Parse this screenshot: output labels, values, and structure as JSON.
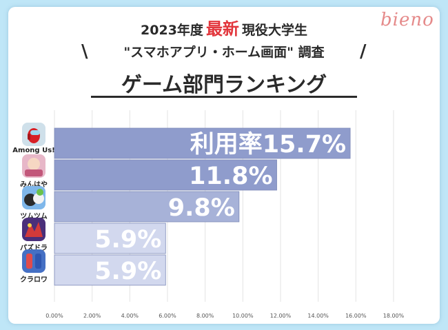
{
  "header": {
    "line1_pre": "2023年度",
    "line1_accent": "最新",
    "line1_post": "現役大学生",
    "line2": "\"スマホアプリ・ホーム画面\" 調査",
    "line3": "ゲーム部門ランキング",
    "slash_left": "\\",
    "slash_right": "/",
    "logo": "bieno"
  },
  "colors": {
    "accent": "#e2363c",
    "bar_dark": "#8f9ccc",
    "bar_mid": "#a7b2d8",
    "bar_light": "#d2d8ee",
    "logo": "#e58a8a"
  },
  "apps": [
    {
      "label": "Among Us!",
      "icon": "among-us-icon",
      "color": "#cfe0ea"
    },
    {
      "label": "みんはや",
      "icon": "minhaya-icon",
      "color": "#e7b7c8"
    },
    {
      "label": "ツムツム",
      "icon": "tsum-tsum-icon",
      "color": "#7fb7ea"
    },
    {
      "label": "パズドラ",
      "icon": "puzzle-dragons-icon",
      "color": "#4a2f7a"
    },
    {
      "label": "クラロワ",
      "icon": "clash-royale-icon",
      "color": "#4570c4"
    }
  ],
  "chart_data": {
    "type": "bar",
    "orientation": "horizontal",
    "categories": [
      "Among Us!",
      "みんはや",
      "ツムツム",
      "パズドラ",
      "クラロワ"
    ],
    "values": [
      15.7,
      11.8,
      9.8,
      5.9,
      5.9
    ],
    "data_labels": [
      "利用率15.7%",
      "11.8%",
      "9.8%",
      "5.9%",
      "5.9%"
    ],
    "xlim": [
      0,
      18
    ],
    "x_ticks": [
      "0.00%",
      "2.00%",
      "4.00%",
      "6.00%",
      "8.00%",
      "10.00%",
      "12.00%",
      "14.00%",
      "16.00%",
      "18.00%"
    ],
    "grid": "vertical",
    "legend": "none"
  }
}
